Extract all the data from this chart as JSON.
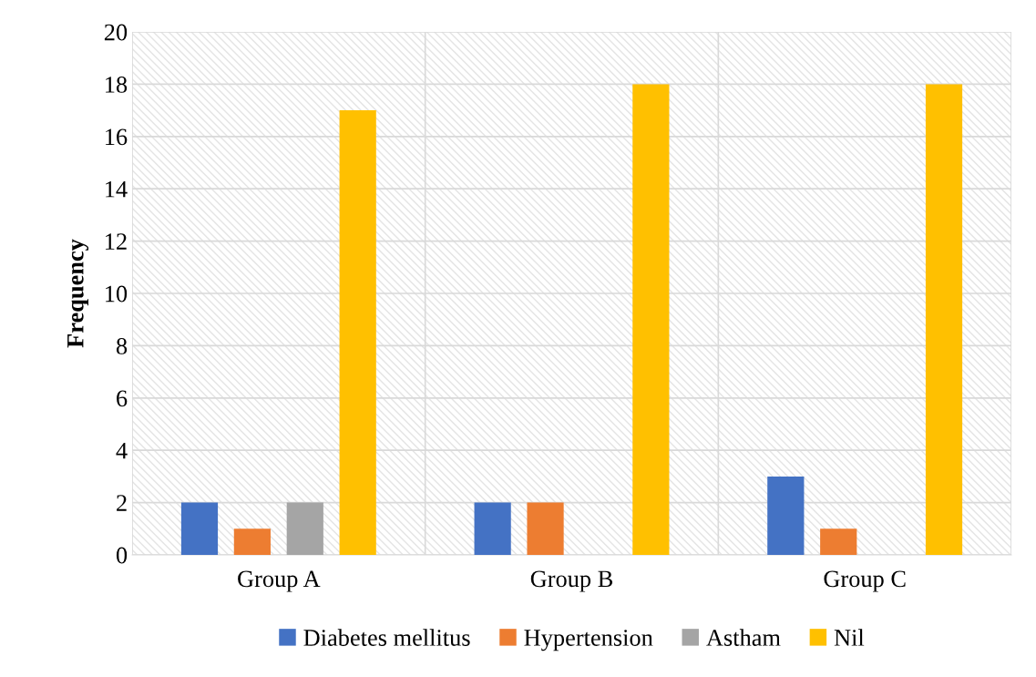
{
  "chart_data": {
    "type": "bar",
    "ylabel": "Frequency",
    "categories": [
      "Group A",
      "Group B",
      "Group C"
    ],
    "series": [
      {
        "name": "Diabetes mellitus",
        "color": "#4472c4",
        "values": [
          2,
          2,
          3
        ]
      },
      {
        "name": "Hypertension",
        "color": "#ed7d31",
        "values": [
          1,
          2,
          1
        ]
      },
      {
        "name": "Astham",
        "color": "#a5a5a5",
        "values": [
          2,
          null,
          null
        ]
      },
      {
        "name": "Nil",
        "color": "#ffc000",
        "values": [
          17,
          18,
          18
        ]
      }
    ],
    "ylim": [
      0,
      20
    ],
    "yticks": [
      0,
      2,
      4,
      6,
      8,
      10,
      12,
      14,
      16,
      18,
      20
    ],
    "grid": true,
    "legend": "bottom"
  }
}
